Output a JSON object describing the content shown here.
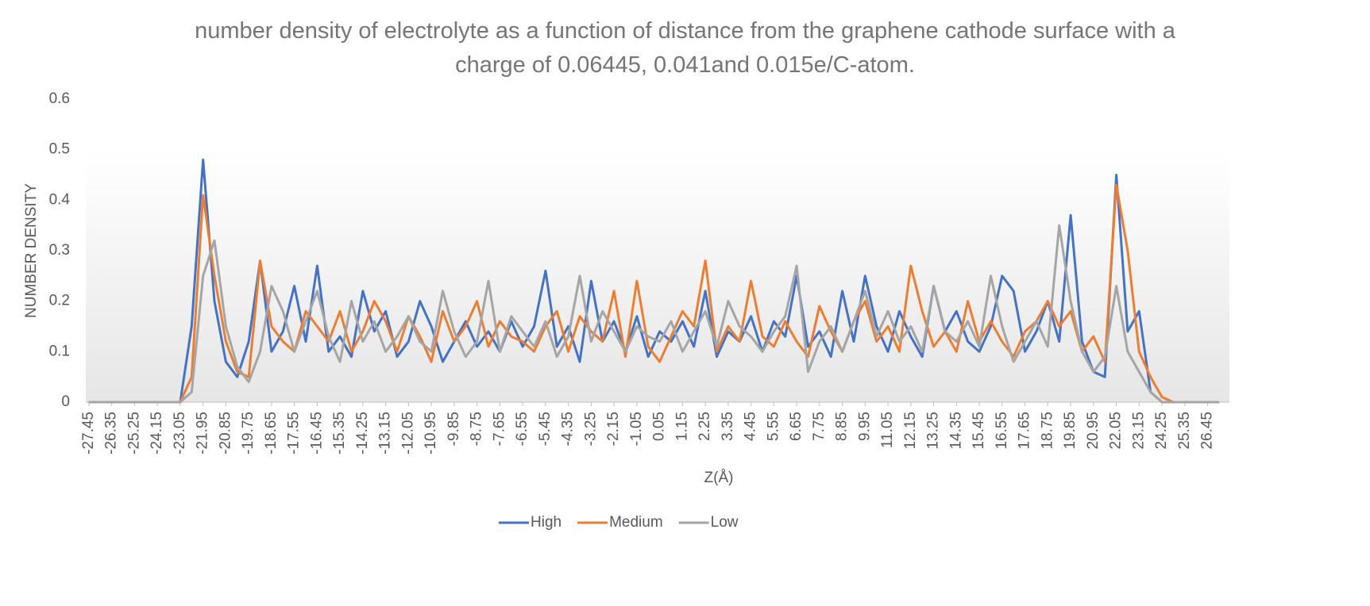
{
  "chart_data": {
    "type": "line",
    "title": "number density of electrolyte as a function of distance from the graphene cathode surface with a charge of 0.06445, 0.041and 0.015e/C-atom.",
    "x_label": "Z(Å)",
    "y_label": "NUMBER DENSITY",
    "x": [
      -27.45,
      -26.9,
      -26.35,
      -25.8,
      -25.25,
      -24.7,
      -24.15,
      -23.6,
      -23.05,
      -22.5,
      -21.95,
      -21.4,
      -20.85,
      -20.3,
      -19.75,
      -19.2,
      -18.65,
      -18.1,
      -17.55,
      -17.0,
      -16.45,
      -15.9,
      -15.35,
      -14.8,
      -14.25,
      -13.7,
      -13.15,
      -12.6,
      -12.05,
      -11.5,
      -10.95,
      -10.4,
      -9.85,
      -9.3,
      -8.75,
      -8.2,
      -7.65,
      -7.1,
      -6.55,
      -6.0,
      -5.45,
      -4.9,
      -4.35,
      -3.8,
      -3.25,
      -2.7,
      -2.15,
      -1.6,
      -1.05,
      -0.5,
      0.05,
      0.6,
      1.15,
      1.7,
      2.25,
      2.8,
      3.35,
      3.9,
      4.45,
      5.0,
      5.55,
      6.1,
      6.65,
      7.2,
      7.75,
      8.3,
      8.85,
      9.4,
      9.95,
      10.5,
      11.05,
      11.6,
      12.15,
      12.7,
      13.25,
      13.8,
      14.35,
      14.9,
      15.45,
      16.0,
      16.55,
      17.1,
      17.65,
      18.2,
      18.75,
      19.3,
      19.85,
      20.4,
      20.95,
      21.5,
      22.05,
      22.6,
      23.15,
      23.7,
      24.25,
      24.8,
      25.35,
      25.9,
      26.45,
      27.0
    ],
    "series": [
      {
        "name": "High",
        "color": "#4472c4",
        "values": [
          0,
          0,
          0,
          0,
          0,
          0,
          0,
          0,
          0,
          0.15,
          0.48,
          0.2,
          0.08,
          0.05,
          0.12,
          0.28,
          0.1,
          0.14,
          0.23,
          0.12,
          0.27,
          0.1,
          0.13,
          0.09,
          0.22,
          0.14,
          0.18,
          0.09,
          0.12,
          0.2,
          0.15,
          0.08,
          0.12,
          0.16,
          0.11,
          0.14,
          0.1,
          0.16,
          0.11,
          0.15,
          0.26,
          0.11,
          0.15,
          0.08,
          0.24,
          0.12,
          0.16,
          0.1,
          0.17,
          0.09,
          0.14,
          0.12,
          0.16,
          0.11,
          0.22,
          0.09,
          0.14,
          0.12,
          0.17,
          0.1,
          0.16,
          0.13,
          0.25,
          0.11,
          0.14,
          0.09,
          0.22,
          0.12,
          0.25,
          0.15,
          0.1,
          0.18,
          0.13,
          0.09,
          0.23,
          0.14,
          0.18,
          0.12,
          0.1,
          0.15,
          0.25,
          0.22,
          0.1,
          0.14,
          0.2,
          0.12,
          0.37,
          0.12,
          0.06,
          0.05,
          0.45,
          0.14,
          0.18,
          0.02,
          0,
          0,
          0,
          0,
          0,
          0
        ]
      },
      {
        "name": "Medium",
        "color": "#ed7d31",
        "values": [
          0,
          0,
          0,
          0,
          0,
          0,
          0,
          0,
          0,
          0.05,
          0.41,
          0.25,
          0.12,
          0.06,
          0.05,
          0.28,
          0.15,
          0.12,
          0.1,
          0.18,
          0.15,
          0.12,
          0.18,
          0.1,
          0.14,
          0.2,
          0.16,
          0.1,
          0.17,
          0.13,
          0.08,
          0.18,
          0.12,
          0.15,
          0.2,
          0.11,
          0.16,
          0.13,
          0.12,
          0.1,
          0.15,
          0.18,
          0.1,
          0.17,
          0.14,
          0.12,
          0.22,
          0.09,
          0.24,
          0.11,
          0.08,
          0.13,
          0.18,
          0.15,
          0.28,
          0.1,
          0.15,
          0.12,
          0.24,
          0.13,
          0.11,
          0.16,
          0.12,
          0.09,
          0.19,
          0.14,
          0.1,
          0.16,
          0.2,
          0.12,
          0.15,
          0.1,
          0.27,
          0.18,
          0.11,
          0.14,
          0.1,
          0.2,
          0.12,
          0.16,
          0.12,
          0.09,
          0.14,
          0.16,
          0.2,
          0.15,
          0.18,
          0.1,
          0.13,
          0.08,
          0.43,
          0.3,
          0.1,
          0.05,
          0.01,
          0,
          0,
          0,
          0,
          0
        ]
      },
      {
        "name": "Low",
        "color": "#a5a5a5",
        "values": [
          0,
          0,
          0,
          0,
          0,
          0,
          0,
          0,
          0,
          0.02,
          0.25,
          0.32,
          0.15,
          0.07,
          0.04,
          0.1,
          0.23,
          0.18,
          0.1,
          0.16,
          0.22,
          0.13,
          0.08,
          0.2,
          0.12,
          0.16,
          0.1,
          0.13,
          0.17,
          0.12,
          0.1,
          0.22,
          0.14,
          0.09,
          0.12,
          0.24,
          0.1,
          0.17,
          0.14,
          0.11,
          0.16,
          0.09,
          0.13,
          0.25,
          0.12,
          0.18,
          0.14,
          0.1,
          0.15,
          0.13,
          0.12,
          0.16,
          0.1,
          0.14,
          0.18,
          0.11,
          0.2,
          0.15,
          0.13,
          0.1,
          0.14,
          0.17,
          0.27,
          0.06,
          0.12,
          0.15,
          0.1,
          0.16,
          0.22,
          0.13,
          0.18,
          0.12,
          0.15,
          0.1,
          0.23,
          0.14,
          0.12,
          0.16,
          0.11,
          0.25,
          0.15,
          0.08,
          0.12,
          0.16,
          0.11,
          0.35,
          0.2,
          0.1,
          0.06,
          0.09,
          0.23,
          0.1,
          0.06,
          0.02,
          0,
          0,
          0,
          0,
          0,
          0
        ]
      }
    ],
    "xlim": [
      -27.6,
      27.5
    ],
    "xticks": [
      -27.45,
      -26.35,
      -25.25,
      -24.15,
      -23.05,
      -21.95,
      -20.85,
      -19.75,
      -18.65,
      -17.55,
      -16.45,
      -15.35,
      -14.25,
      -13.15,
      -12.05,
      -10.95,
      -9.85,
      -8.75,
      -7.65,
      -6.55,
      -5.45,
      -4.35,
      -3.25,
      -2.15,
      -1.05,
      0.05,
      1.15,
      2.25,
      3.35,
      4.45,
      5.55,
      6.65,
      7.75,
      8.85,
      9.95,
      11.05,
      12.15,
      13.25,
      14.35,
      15.45,
      16.55,
      17.65,
      18.75,
      19.85,
      20.95,
      22.05,
      23.15,
      24.25,
      25.35,
      26.45
    ],
    "ylim": [
      0,
      0.6
    ],
    "yticks": [
      0,
      0.1,
      0.2,
      0.3,
      0.4,
      0.5,
      0.6
    ],
    "grid": false,
    "legend": "bottom"
  }
}
